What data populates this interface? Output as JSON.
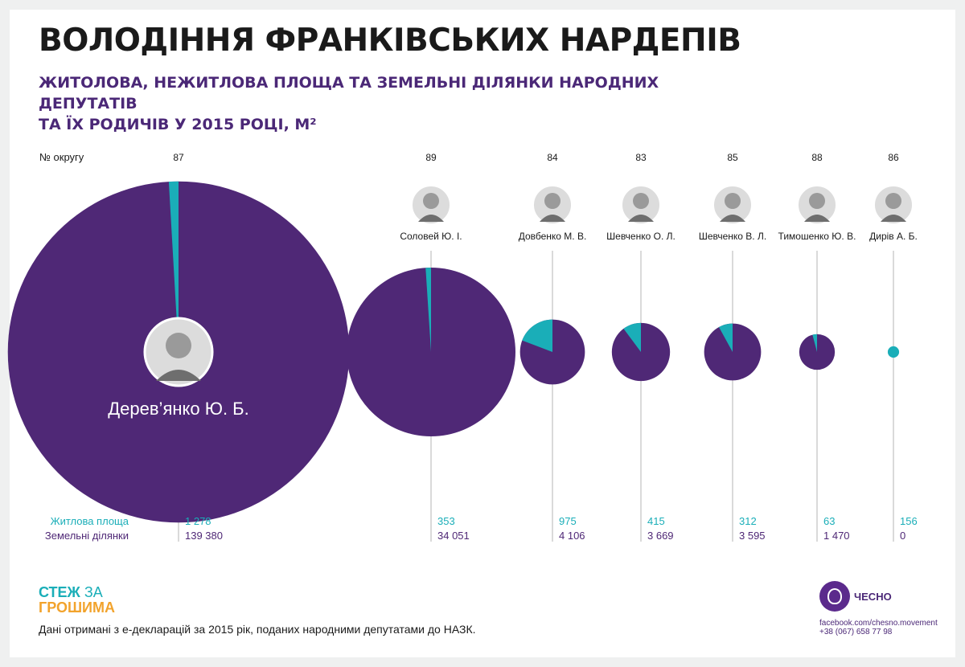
{
  "title": "ВОЛОДІННЯ ФРАНКІВСЬКИХ НАРДЕПІВ",
  "subtitle_line1": "ЖИТОЛОВА, НЕЖИТЛОВА ПЛОЩА ТА ЗЕМЕЛЬНІ ДІЛЯНКИ НАРОДНИХ ДЕПУТАТІВ",
  "subtitle_line2": "ТА ЇХ РОДИЧІВ У 2015 РОЦІ, М²",
  "district_label": "№ округу",
  "colors": {
    "living": "#1aaeb8",
    "land": "#4f2876",
    "text": "#1a1a1a",
    "accent_orange": "#f2a32c"
  },
  "chart_data": {
    "type": "pie",
    "title": "ВОЛОДІННЯ ФРАНКІВСЬКИХ НАРДЕПІВ",
    "series_labels": {
      "living": "Житлова площа",
      "land": "Земельні ділянки"
    },
    "values_display": {
      "living": [
        "1 278",
        "353",
        "975",
        "415",
        "312",
        "63",
        "156"
      ],
      "land": [
        "139 380",
        "34 051",
        "4 106",
        "3 669",
        "3 595",
        "1 470",
        "0"
      ]
    },
    "deputies": [
      {
        "district": "87",
        "name": "Дерев’янко Ю. Б.",
        "living": 1278,
        "land": 139380
      },
      {
        "district": "89",
        "name": "Соловей Ю. І.",
        "living": 353,
        "land": 34051
      },
      {
        "district": "84",
        "name": "Довбенко М. В.",
        "living": 975,
        "land": 4106
      },
      {
        "district": "83",
        "name": "Шевченко О. Л.",
        "living": 415,
        "land": 3669
      },
      {
        "district": "85",
        "name": "Шевченко В. Л.",
        "living": 312,
        "land": 3595
      },
      {
        "district": "88",
        "name": "Тимошенко Ю. В.",
        "living": 63,
        "land": 1470
      },
      {
        "district": "86",
        "name": "Дирів А. Б.",
        "living": 156,
        "land": 0
      }
    ]
  },
  "brand": {
    "line1a": "СТЕЖ",
    "line1b": "ЗА",
    "line2": "ГРОШИМА"
  },
  "source": "Дані отримані з е-декларацій за 2015 рік, поданих народними депутатами до НАЗК.",
  "chesno": {
    "name": "ЧЕСНО",
    "url": "facebook.com/chesno.movement",
    "phone": "+38 (067) 658 77 98"
  }
}
